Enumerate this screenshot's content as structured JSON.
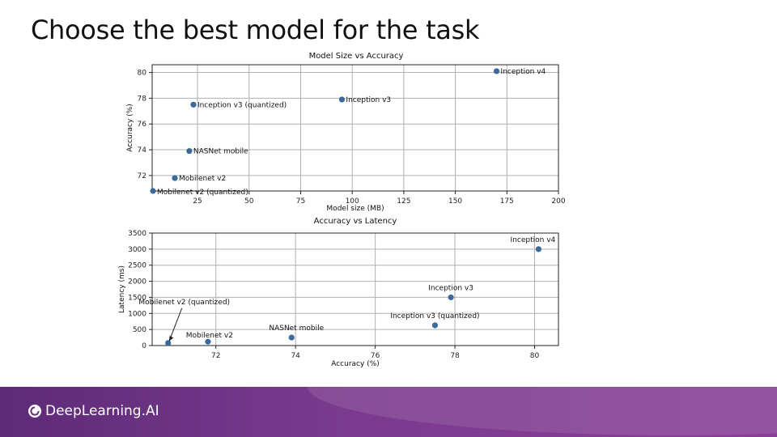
{
  "slide": {
    "title": "Choose the best model for the task"
  },
  "footer": {
    "brand": "DeepLearning.AI",
    "logo_icon": "deeplearning-ai-logo-icon"
  },
  "colors": {
    "point": "#3b6a9a",
    "grid": "#b0b0b0",
    "footer": "#6a317f"
  },
  "chart_data": [
    {
      "type": "scatter",
      "title": "Model Size vs Accuracy",
      "xlabel": "Model size (MB)",
      "ylabel": "Accuracy (%)",
      "xlim": [
        3,
        200
      ],
      "ylim": [
        70.8,
        80.6
      ],
      "xticks": [
        25,
        50,
        75,
        100,
        125,
        150,
        175,
        200
      ],
      "yticks": [
        72,
        74,
        76,
        78,
        80
      ],
      "grid": true,
      "points": [
        {
          "label": "Mobilenet v2 (quantized)",
          "x": 3.4,
          "y": 70.8
        },
        {
          "label": "Mobilenet v2",
          "x": 14,
          "y": 71.8
        },
        {
          "label": "NASNet mobile",
          "x": 21,
          "y": 73.9
        },
        {
          "label": "Inception v3 (quantized)",
          "x": 23,
          "y": 77.5
        },
        {
          "label": "Inception v3",
          "x": 95,
          "y": 77.9
        },
        {
          "label": "Inception v4",
          "x": 170,
          "y": 80.1
        }
      ]
    },
    {
      "type": "scatter",
      "title": "Accuracy vs Latency",
      "xlabel": "Accuracy (%)",
      "ylabel": "Latency (ms)",
      "xlim": [
        70.4,
        80.6
      ],
      "ylim": [
        0,
        3500
      ],
      "xticks": [
        72,
        74,
        76,
        78,
        80
      ],
      "yticks": [
        0,
        500,
        1000,
        1500,
        2000,
        2500,
        3000,
        3500
      ],
      "grid": true,
      "points": [
        {
          "label": "Mobilenet v2 (quantized)",
          "x": 70.8,
          "y": 80
        },
        {
          "label": "Mobilenet v2",
          "x": 71.8,
          "y": 120
        },
        {
          "label": "NASNet mobile",
          "x": 73.9,
          "y": 250
        },
        {
          "label": "Inception v3 (quantized)",
          "x": 77.5,
          "y": 630
        },
        {
          "label": "Inception v3",
          "x": 77.9,
          "y": 1500
        },
        {
          "label": "Inception v4",
          "x": 80.1,
          "y": 3000
        }
      ]
    }
  ]
}
